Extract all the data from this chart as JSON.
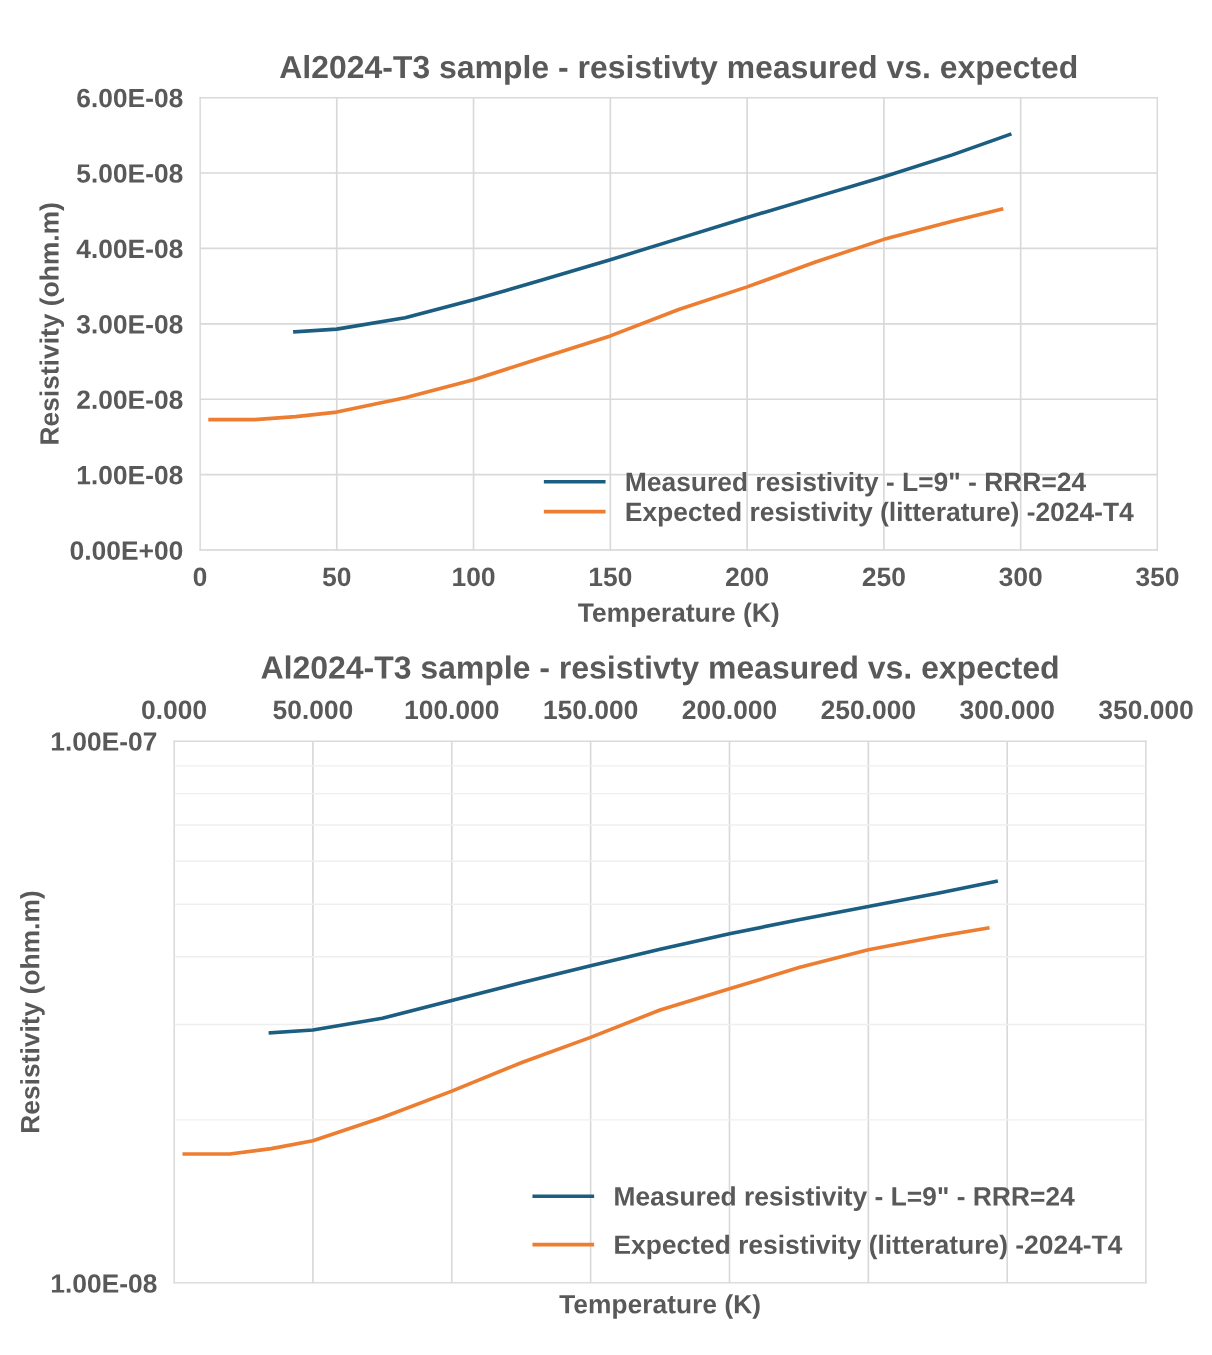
{
  "chart_data": [
    {
      "type": "line",
      "title": "Al2024-T3 sample - resistivty measured vs. expected",
      "xlabel": "Temperature (K)",
      "ylabel": "Resistivity (ohm.m)",
      "series": [
        {
          "name": "Measured resistivity - L=9\" - RRR=24",
          "color": "#1b5e82",
          "x": [
            34.7,
            50,
            75,
            100,
            125,
            150,
            175,
            200,
            225,
            250,
            275,
            296
          ],
          "values": [
            2.895e-08,
            2.93e-08,
            3.08e-08,
            3.32e-08,
            3.58e-08,
            3.85e-08,
            4.13e-08,
            4.41e-08,
            4.68e-08,
            4.95e-08,
            5.24e-08,
            5.51e-08
          ]
        },
        {
          "name": "Expected resistivity (litterature) -2024-T4",
          "color": "#ed7d31",
          "x": [
            3.7,
            20,
            35,
            50,
            75,
            100,
            125,
            150,
            175,
            200,
            225,
            250,
            275,
            293
          ],
          "values": [
            1.73e-08,
            1.73e-08,
            1.77e-08,
            1.83e-08,
            2.02e-08,
            2.26e-08,
            2.55e-08,
            2.84e-08,
            3.19e-08,
            3.49e-08,
            3.82e-08,
            4.12e-08,
            4.36e-08,
            4.52e-08
          ]
        }
      ],
      "xlim": [
        0,
        350
      ],
      "xticks": [
        0,
        50,
        100,
        150,
        200,
        250,
        300,
        350
      ],
      "ylim": [
        0,
        6e-08
      ],
      "yticks": [
        {
          "value": 0,
          "label": "0.00E+00"
        },
        {
          "value": 1e-08,
          "label": "1.00E-08"
        },
        {
          "value": 2e-08,
          "label": "2.00E-08"
        },
        {
          "value": 3e-08,
          "label": "3.00E-08"
        },
        {
          "value": 4e-08,
          "label": "4.00E-08"
        },
        {
          "value": 5e-08,
          "label": "5.00E-08"
        },
        {
          "value": 6e-08,
          "label": "6.00E-08"
        }
      ],
      "grid": true,
      "legend": "bottom right",
      "marker": "none",
      "line_style": "solid"
    },
    {
      "type": "line",
      "title": "Al2024-T3 sample - resistivty measured vs. expected",
      "xlabel": "Temperature (K)",
      "ylabel": "Resistivity (ohm.m)",
      "series": [
        {
          "name": "Measured resistivity - L=9\" - RRR=24",
          "color": "#1b5e82",
          "x": [
            34.7,
            50,
            75,
            100,
            125,
            150,
            175,
            200,
            225,
            250,
            275,
            296
          ],
          "values": [
            2.895e-08,
            2.93e-08,
            3.08e-08,
            3.32e-08,
            3.58e-08,
            3.85e-08,
            4.13e-08,
            4.41e-08,
            4.68e-08,
            4.95e-08,
            5.24e-08,
            5.51e-08
          ]
        },
        {
          "name": "Expected resistivity (litterature) -2024-T4",
          "color": "#ed7d31",
          "x": [
            3.7,
            20,
            35,
            50,
            75,
            100,
            125,
            150,
            175,
            200,
            225,
            250,
            275,
            293
          ],
          "values": [
            1.73e-08,
            1.73e-08,
            1.77e-08,
            1.83e-08,
            2.02e-08,
            2.26e-08,
            2.55e-08,
            2.84e-08,
            3.19e-08,
            3.49e-08,
            3.82e-08,
            4.12e-08,
            4.36e-08,
            4.52e-08
          ]
        }
      ],
      "xlim": [
        0,
        350
      ],
      "xticks": [
        {
          "value": 0,
          "label": "0.000"
        },
        {
          "value": 50,
          "label": "50.000"
        },
        {
          "value": 100,
          "label": "100.000"
        },
        {
          "value": 150,
          "label": "150.000"
        },
        {
          "value": 200,
          "label": "200.000"
        },
        {
          "value": 250,
          "label": "250.000"
        },
        {
          "value": 300,
          "label": "300.000"
        },
        {
          "value": 350,
          "label": "350.000"
        }
      ],
      "ylim": [
        1e-08,
        1e-07
      ],
      "yticks": [
        {
          "value": 1e-08,
          "label": "1.00E-08"
        },
        {
          "value": 1e-07,
          "label": "1.00E-07"
        }
      ],
      "log": "y",
      "grid": true,
      "legend": "bottom right",
      "marker": "none",
      "line_style": "solid"
    }
  ]
}
